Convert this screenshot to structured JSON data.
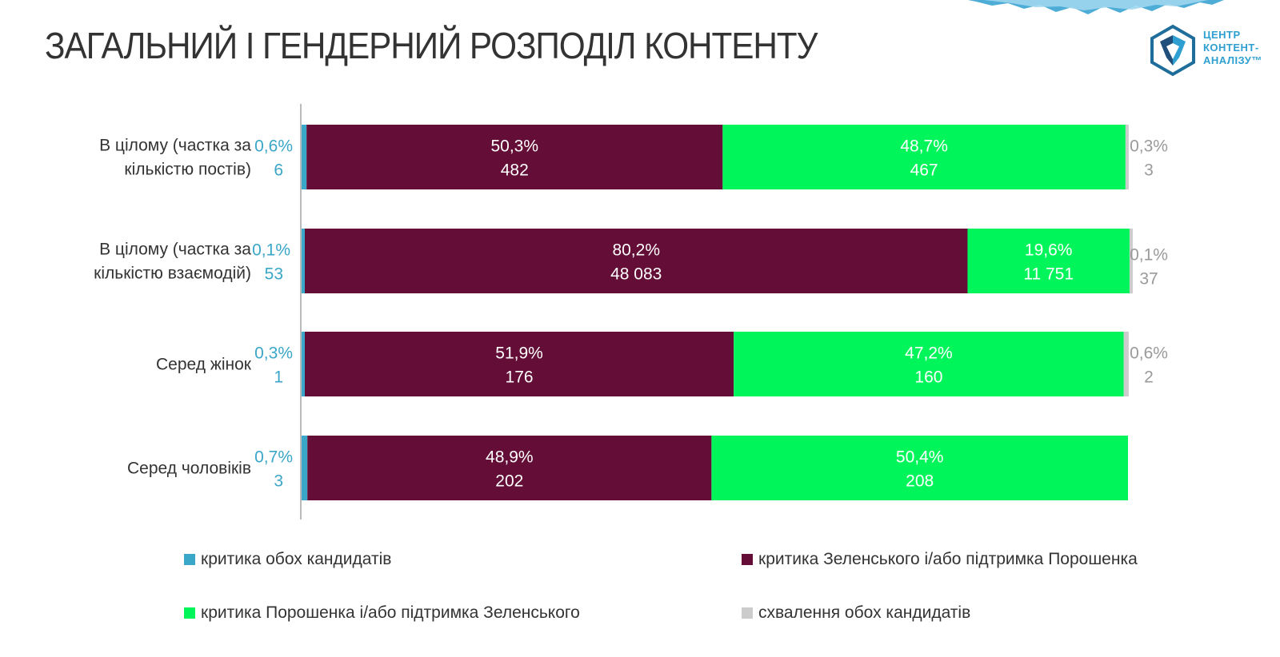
{
  "title": "ЗАГАЛЬНИЙ І ГЕНДЕРНИЙ РОЗПОДІЛ КОНТЕНТУ",
  "logo": {
    "lines": [
      "ЦЕНТР",
      "КОНТЕНТ-",
      "АНАЛІЗУ™"
    ]
  },
  "colors": {
    "both_criticism": "#3aa6c8",
    "zelensky_criticism": "#640d36",
    "poroshenko_criticism": "#00f55a",
    "both_approval": "#cccccc",
    "title": "#333333",
    "axis": "#bbbbbb"
  },
  "chart_data": {
    "type": "bar",
    "orientation": "horizontal",
    "stacked": true,
    "normalized": true,
    "categories": [
      [
        "В цілому (частка за",
        "кількістю постів)"
      ],
      [
        "В цілому (частка за",
        "кількістю взаємодій)"
      ],
      [
        "Серед жінок"
      ],
      [
        "Серед чоловіків"
      ]
    ],
    "series": [
      {
        "key": "both_criticism",
        "name": "критика обох кандидатів",
        "percent_labels": [
          "0,6%",
          "0,1%",
          "0,3%",
          "0,7%"
        ],
        "count_labels": [
          "6",
          "53",
          "1",
          "3"
        ],
        "values": [
          0.6,
          0.1,
          0.3,
          0.7
        ]
      },
      {
        "key": "zelensky_criticism",
        "name": "критика Зеленського і/або підтримка Порошенка",
        "percent_labels": [
          "50,3%",
          "80,2%",
          "51,9%",
          "48,9%"
        ],
        "count_labels": [
          "482",
          "48 083",
          "176",
          "202"
        ],
        "values": [
          50.3,
          80.2,
          51.9,
          48.9
        ]
      },
      {
        "key": "poroshenko_criticism",
        "name": "критика Порошенка і/або підтримка Зеленського",
        "percent_labels": [
          "48,7%",
          "19,6%",
          "47,2%",
          "50,4%"
        ],
        "count_labels": [
          "467",
          "11 751",
          "160",
          "208"
        ],
        "values": [
          48.7,
          19.6,
          47.2,
          50.4
        ]
      },
      {
        "key": "both_approval",
        "name": "схвалення обох кандидатів",
        "percent_labels": [
          "0,3%",
          "0,1%",
          "0,6%",
          null
        ],
        "count_labels": [
          "3",
          "37",
          "2",
          null
        ],
        "values": [
          0.3,
          0.1,
          0.6,
          0
        ]
      }
    ]
  }
}
